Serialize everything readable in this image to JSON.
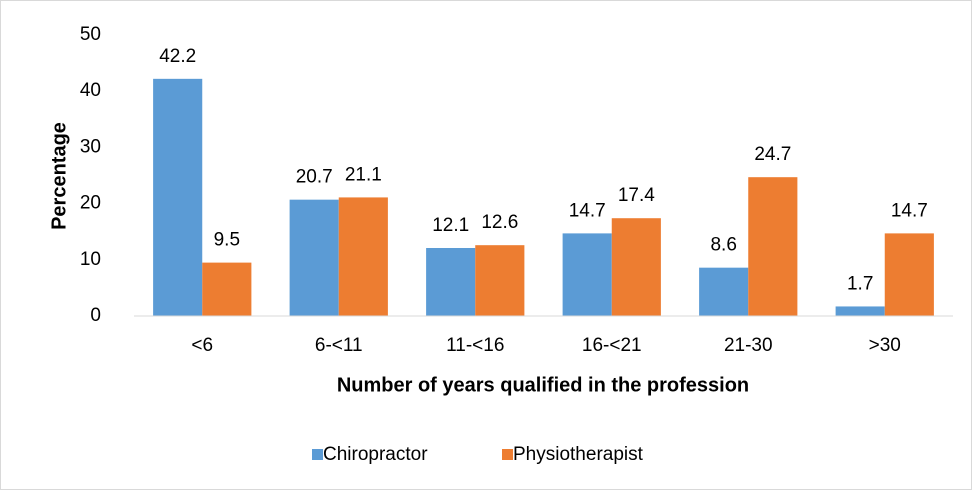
{
  "chart_data": {
    "type": "bar",
    "xlabel": "Number of years qualified in the profession",
    "ylabel": "Percentage",
    "categories": [
      "<6",
      "6-<11",
      "11-<16",
      "16-<21",
      "21-30",
      ">30"
    ],
    "series": [
      {
        "name": "Chiropractor",
        "color": "#5b9bd5",
        "values": [
          42.2,
          20.7,
          12.1,
          14.7,
          8.6,
          1.7
        ]
      },
      {
        "name": "Physiotherapist",
        "color": "#ed7d31",
        "values": [
          9.5,
          21.1,
          12.6,
          17.4,
          24.7,
          14.7
        ]
      }
    ],
    "ylim": [
      0,
      50
    ],
    "yticks": [
      0,
      10,
      20,
      30,
      40,
      50
    ],
    "grid": false,
    "legend": "bottom"
  }
}
